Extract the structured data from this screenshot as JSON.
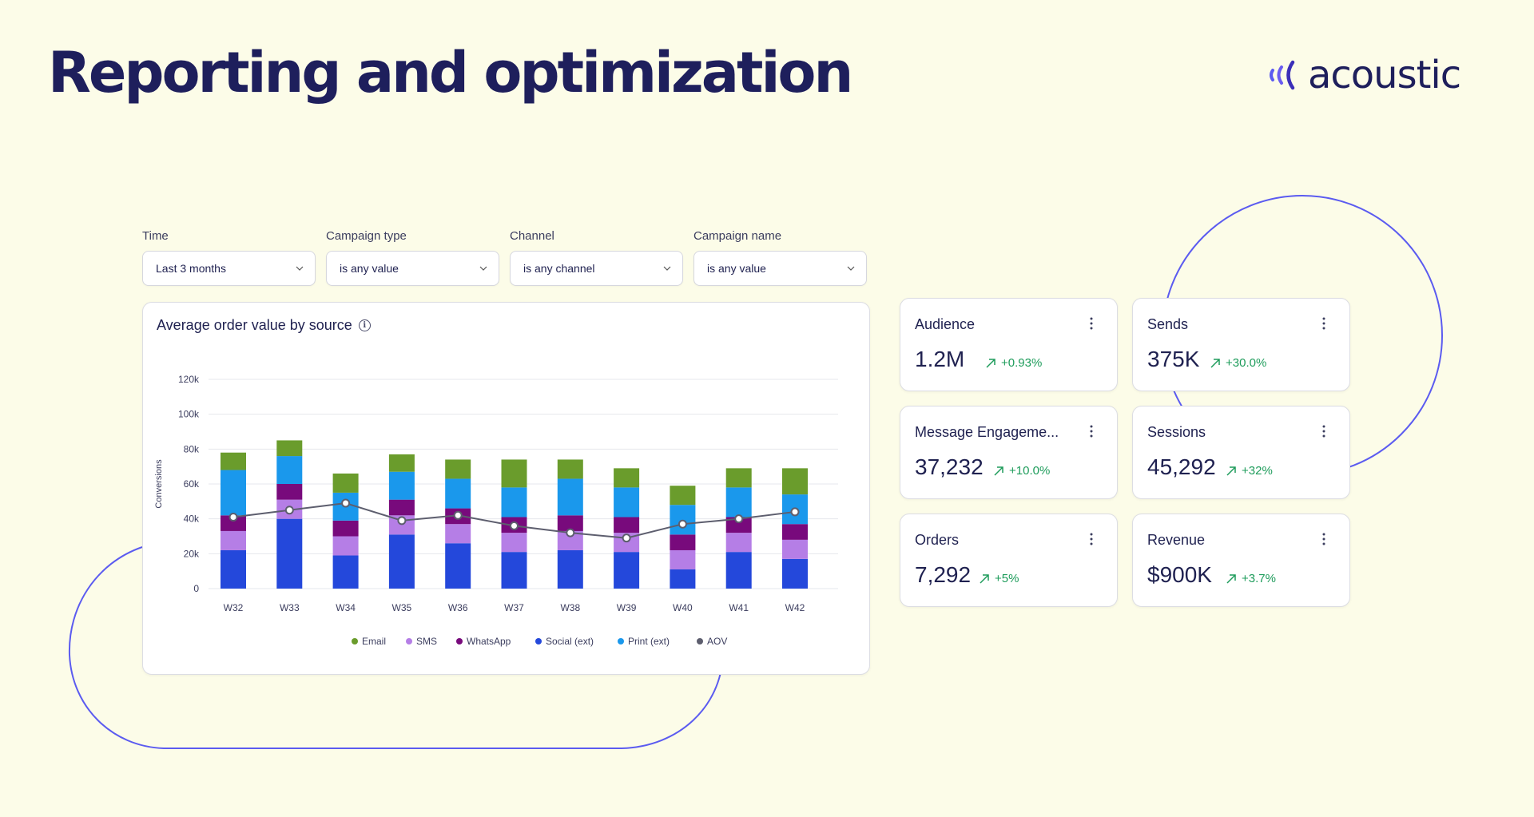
{
  "page": {
    "title": "Reporting and optimization"
  },
  "brand": {
    "name": "acoustic",
    "color": "#1e1f5c",
    "accent": "#5b5bf0"
  },
  "filters": [
    {
      "label": "Time",
      "value": "Last 3 months"
    },
    {
      "label": "Campaign type",
      "value": "is any value"
    },
    {
      "label": "Channel",
      "value": "is any channel"
    },
    {
      "label": "Campaign name",
      "value": "is any value"
    }
  ],
  "chart": {
    "title": "Average order value by source",
    "info_icon": "info-icon"
  },
  "metrics": [
    {
      "label": "Audience",
      "value": "1.2M",
      "change": "+0.93%",
      "trend": "up"
    },
    {
      "label": "Sends",
      "value": "375K",
      "change": "+30.0%",
      "trend": "up"
    },
    {
      "label": "Message Engageme...",
      "value": "37,232",
      "change": "+10.0%",
      "trend": "up"
    },
    {
      "label": "Sessions",
      "value": "45,292",
      "change": "+32%",
      "trend": "up"
    },
    {
      "label": "Orders",
      "value": "7,292",
      "change": "+5%",
      "trend": "up"
    },
    {
      "label": "Revenue",
      "value": "$900K",
      "change": "+3.7%",
      "trend": "up"
    }
  ],
  "colors": {
    "positive": "#1e9c5b",
    "email": "#6a9c2c",
    "sms": "#b57ee6",
    "whatsapp": "#780a7c",
    "social": "#2448db",
    "print": "#1a98ec",
    "aov": "#5d5e6e"
  },
  "chart_data": {
    "type": "bar",
    "stacked": true,
    "title": "Average order value by source",
    "xlabel": "",
    "ylabel": "Conversions",
    "ylim": [
      0,
      120000
    ],
    "yticks": [
      0,
      20000,
      40000,
      60000,
      80000,
      100000,
      120000
    ],
    "ytick_labels": [
      "0",
      "20k",
      "40k",
      "60k",
      "80k",
      "100k",
      "120k"
    ],
    "grid": true,
    "legend_position": "bottom",
    "categories": [
      "W32",
      "W33",
      "W34",
      "W35",
      "W36",
      "W37",
      "W38",
      "W39",
      "W40",
      "W41",
      "W42"
    ],
    "series": [
      {
        "name": "Social (ext)",
        "key": "social",
        "values": [
          22000,
          40000,
          19000,
          31000,
          26000,
          21000,
          22000,
          21000,
          11000,
          21000,
          17000
        ]
      },
      {
        "name": "SMS",
        "key": "sms",
        "values": [
          11000,
          11000,
          11000,
          11000,
          11000,
          11000,
          11000,
          11000,
          11000,
          11000,
          11000
        ]
      },
      {
        "name": "WhatsApp",
        "key": "whatsapp",
        "values": [
          9000,
          9000,
          9000,
          9000,
          9000,
          9000,
          9000,
          9000,
          9000,
          9000,
          9000
        ]
      },
      {
        "name": "Print (ext)",
        "key": "print",
        "values": [
          26000,
          16000,
          16000,
          16000,
          17000,
          17000,
          21000,
          17000,
          17000,
          17000,
          17000
        ]
      },
      {
        "name": "Email",
        "key": "email",
        "values": [
          10000,
          9000,
          11000,
          10000,
          11000,
          16000,
          11000,
          11000,
          11000,
          11000,
          15000
        ]
      }
    ],
    "line_series": {
      "name": "AOV",
      "key": "aov",
      "values": [
        41000,
        45000,
        49000,
        39000,
        42000,
        36000,
        32000,
        29000,
        37000,
        40000,
        44000
      ]
    },
    "legend": [
      {
        "name": "Email",
        "key": "email"
      },
      {
        "name": "SMS",
        "key": "sms"
      },
      {
        "name": "WhatsApp",
        "key": "whatsapp"
      },
      {
        "name": "Social (ext)",
        "key": "social"
      },
      {
        "name": "Print (ext)",
        "key": "print"
      },
      {
        "name": "AOV",
        "key": "aov"
      }
    ]
  }
}
